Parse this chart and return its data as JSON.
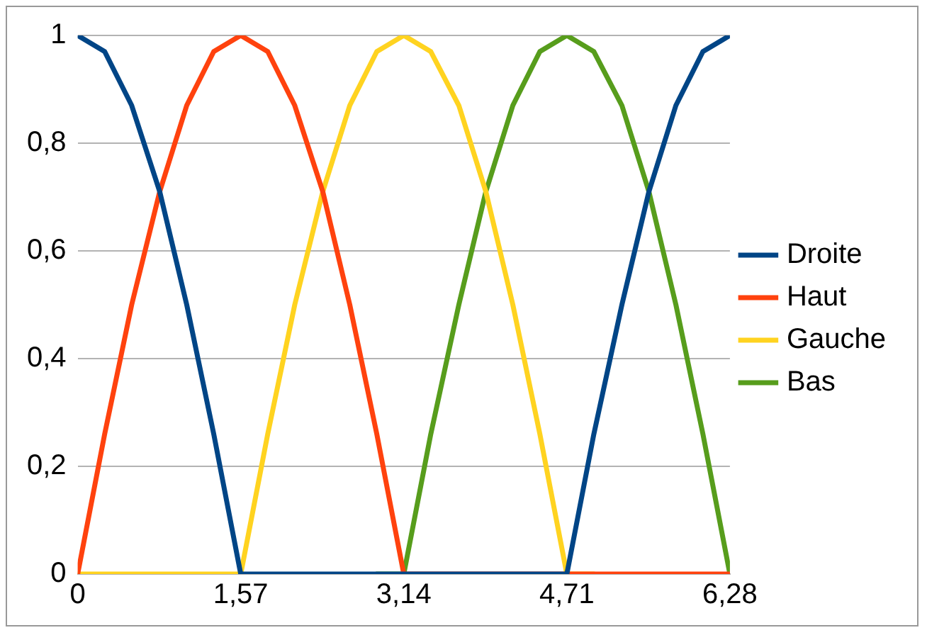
{
  "chart_data": {
    "type": "line",
    "x": [
      0,
      0.26,
      0.52,
      0.79,
      1.05,
      1.31,
      1.57,
      1.83,
      2.09,
      2.36,
      2.62,
      2.88,
      3.14,
      3.4,
      3.67,
      3.93,
      4.19,
      4.45,
      4.71,
      4.97,
      5.24,
      5.5,
      5.76,
      6.02,
      6.28
    ],
    "series": [
      {
        "name": "Droite",
        "color": "#004586",
        "values": [
          1,
          0.97,
          0.87,
          0.71,
          0.5,
          0.26,
          0,
          0,
          0,
          0,
          0,
          0,
          0,
          0,
          0,
          0,
          0,
          0,
          0,
          0.26,
          0.5,
          0.71,
          0.87,
          0.97,
          1
        ]
      },
      {
        "name": "Haut",
        "color": "#ff420e",
        "values": [
          0,
          0.26,
          0.5,
          0.71,
          0.87,
          0.97,
          1,
          0.97,
          0.87,
          0.71,
          0.5,
          0.26,
          0,
          0,
          0,
          0,
          0,
          0,
          0,
          0,
          0,
          0,
          0,
          0,
          0
        ]
      },
      {
        "name": "Gauche",
        "color": "#ffd320",
        "values": [
          0,
          0,
          0,
          0,
          0,
          0,
          0,
          0.26,
          0.5,
          0.71,
          0.87,
          0.97,
          1,
          0.97,
          0.87,
          0.71,
          0.5,
          0.26,
          0,
          0,
          null,
          null,
          null,
          null,
          null
        ]
      },
      {
        "name": "Bas",
        "color": "#579d1c",
        "values": [
          null,
          null,
          null,
          null,
          null,
          null,
          null,
          null,
          null,
          null,
          null,
          0,
          0,
          0.26,
          0.5,
          0.71,
          0.87,
          0.97,
          1,
          0.97,
          0.87,
          0.71,
          0.5,
          0.26,
          0
        ]
      }
    ],
    "xlim": [
      0,
      6.28
    ],
    "xticks": [
      0,
      {
        "value": 1.57,
        "label": "1,57"
      },
      {
        "value": 3.14,
        "label": "3,14"
      },
      {
        "value": 4.71,
        "label": "4,71"
      },
      {
        "value": 6.28,
        "label": "6,28"
      }
    ],
    "ylim": [
      0,
      1
    ],
    "yticks": [
      0,
      {
        "value": 0.2,
        "label": "0,2"
      },
      {
        "value": 0.4,
        "label": "0,4"
      },
      {
        "value": 0.6,
        "label": "0,6"
      },
      {
        "value": 0.8,
        "label": "0,8"
      },
      1
    ],
    "grid": "y",
    "legend": "right",
    "marker": "none",
    "line_style": "solid"
  }
}
